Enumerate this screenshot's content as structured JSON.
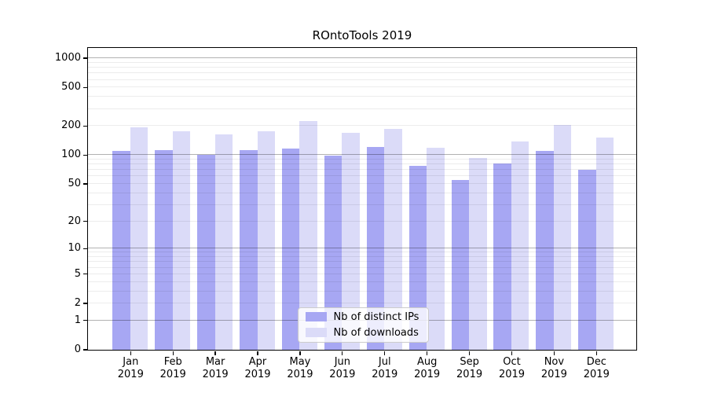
{
  "title": "ROntoTools 2019",
  "legend": {
    "entries": [
      "Nb of distinct IPs",
      "Nb of downloads"
    ]
  },
  "chart_data": {
    "type": "bar",
    "title": "ROntoTools 2019",
    "months": [
      "Jan",
      "Feb",
      "Mar",
      "Apr",
      "May",
      "Jun",
      "Jul",
      "Aug",
      "Sep",
      "Oct",
      "Nov",
      "Dec"
    ],
    "year": "2019",
    "series": [
      {
        "name": "Nb of distinct IPs",
        "color": "#a7a7f3",
        "values": [
          110,
          112,
          99,
          112,
          115,
          97,
          121,
          77,
          54,
          81,
          109,
          69
        ]
      },
      {
        "name": "Nb of downloads",
        "color": "#dbdbf8",
        "values": [
          192,
          174,
          162,
          175,
          222,
          169,
          185,
          117,
          93,
          138,
          204,
          150
        ]
      }
    ],
    "yscale": "log1p",
    "ylim": [
      0,
      1280
    ],
    "yticks": [
      1000,
      500,
      200,
      100,
      50,
      20,
      10,
      5,
      2,
      1,
      0
    ],
    "major_gridlines": [
      1,
      10,
      100,
      1000
    ],
    "grid": true,
    "legend_position": "lower center"
  }
}
